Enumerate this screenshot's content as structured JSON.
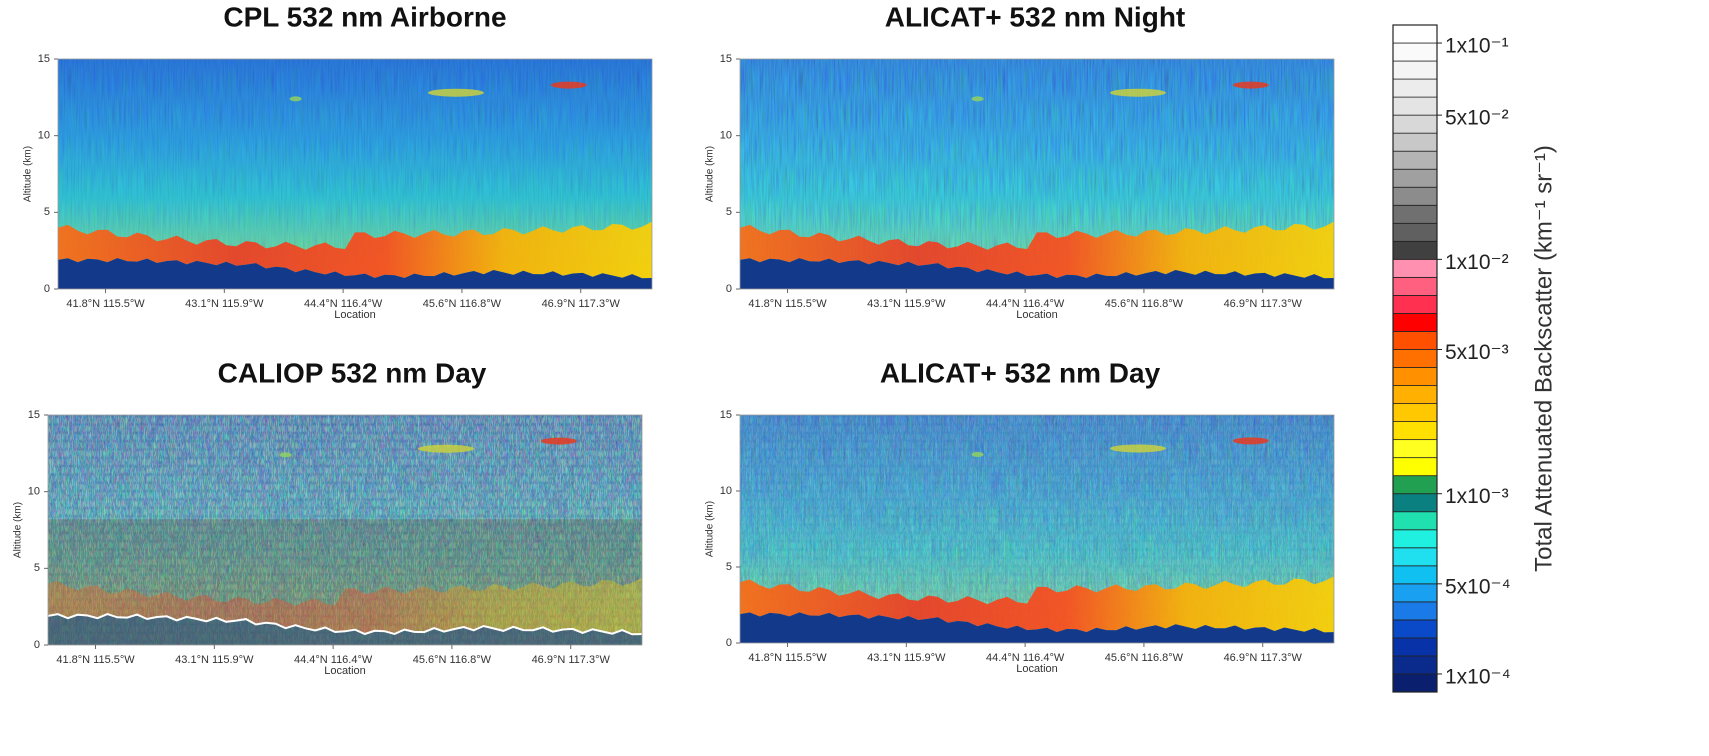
{
  "chart_data": [
    {
      "type": "heatmap",
      "title": "CPL 532 nm Airborne",
      "xlabel": "Location",
      "ylabel": "Altitude (km)",
      "categories": [
        "41.8°N 115.5°W",
        "43.1°N 115.9°W",
        "44.4°N 116.4°W",
        "45.6°N 116.8°W",
        "46.9°N 117.3°W"
      ],
      "ylim": [
        0,
        15
      ],
      "yticks": [
        0,
        5,
        10,
        15
      ]
    },
    {
      "type": "heatmap",
      "title": "ALICAT+ 532 nm Night",
      "xlabel": "Location",
      "ylabel": "Altitude (km)",
      "categories": [
        "41.8°N 115.5°W",
        "43.1°N 115.9°W",
        "44.4°N 116.4°W",
        "45.6°N 116.8°W",
        "46.9°N 117.3°W"
      ],
      "ylim": [
        0,
        15
      ],
      "yticks": [
        0,
        5,
        10,
        15
      ]
    },
    {
      "type": "heatmap",
      "title": "CALIOP 532 nm Day",
      "xlabel": "Location",
      "ylabel": "Altitude (km)",
      "categories": [
        "41.8°N 115.5°W",
        "43.1°N 115.9°W",
        "44.4°N 116.4°W",
        "45.6°N 116.8°W",
        "46.9°N 117.3°W"
      ],
      "ylim": [
        0,
        15
      ],
      "yticks": [
        0,
        5,
        10,
        15
      ]
    },
    {
      "type": "heatmap",
      "title": "ALICAT+ 532 nm Day",
      "xlabel": "Location",
      "ylabel": "Altitude (km)",
      "categories": [
        "41.8°N 115.5°W",
        "43.1°N 115.9°W",
        "44.4°N 116.4°W",
        "45.6°N 116.8°W",
        "46.9°N 117.3°W"
      ],
      "ylim": [
        0,
        15
      ],
      "yticks": [
        0,
        5,
        10,
        15
      ]
    },
    {
      "type": "colorbar",
      "label": "Total Attenuated Backscatter (km⁻¹ sr⁻¹)",
      "log": true,
      "bins": [
        8e-05,
        0.0001,
        0.00015,
        0.0002,
        0.0003,
        0.0004,
        0.0005,
        0.0006,
        0.0007,
        0.0008,
        0.0009,
        0.001,
        0.0015,
        0.002,
        0.0025,
        0.003,
        0.0035,
        0.004,
        0.0045,
        0.005,
        0.006,
        0.007,
        0.008,
        0.009,
        0.01,
        0.015,
        0.02,
        0.025,
        0.03,
        0.035,
        0.04,
        0.045,
        0.05,
        0.06,
        0.07,
        0.08,
        0.1,
        0.12
      ],
      "colors": [
        "#0a1f6e",
        "#0a2a8c",
        "#0833a8",
        "#0a4ac8",
        "#1a7ae8",
        "#1aa0f0",
        "#10c0f0",
        "#20e0f0",
        "#20f0e0",
        "#20e0b0",
        "#0a8080",
        "#20a050",
        "#ffff00",
        "#ffff20",
        "#ffe000",
        "#ffc800",
        "#ffb000",
        "#ff9000",
        "#ff7000",
        "#ff5000",
        "#ff0000",
        "#ff3050",
        "#ff6080",
        "#ff90b0",
        "#404040",
        "#606060",
        "#707070",
        "#8c8c8c",
        "#a0a0a0",
        "#b4b4b4",
        "#c8c8c8",
        "#d8d8d8",
        "#e4e4e4",
        "#ececec",
        "#f4f4f4",
        "#fafafa",
        "#ffffff"
      ],
      "ticks": [
        {
          "value": 0.1,
          "label": "1x10⁻¹"
        },
        {
          "value": 0.05,
          "label": "5x10⁻²"
        },
        {
          "value": 0.01,
          "label": "1x10⁻²"
        },
        {
          "value": 0.005,
          "label": "5x10⁻³"
        },
        {
          "value": 0.001,
          "label": "1x10⁻³"
        },
        {
          "value": 0.0005,
          "label": "5x10⁻⁴"
        },
        {
          "value": 0.0001,
          "label": "1x10⁻⁴"
        }
      ]
    }
  ]
}
